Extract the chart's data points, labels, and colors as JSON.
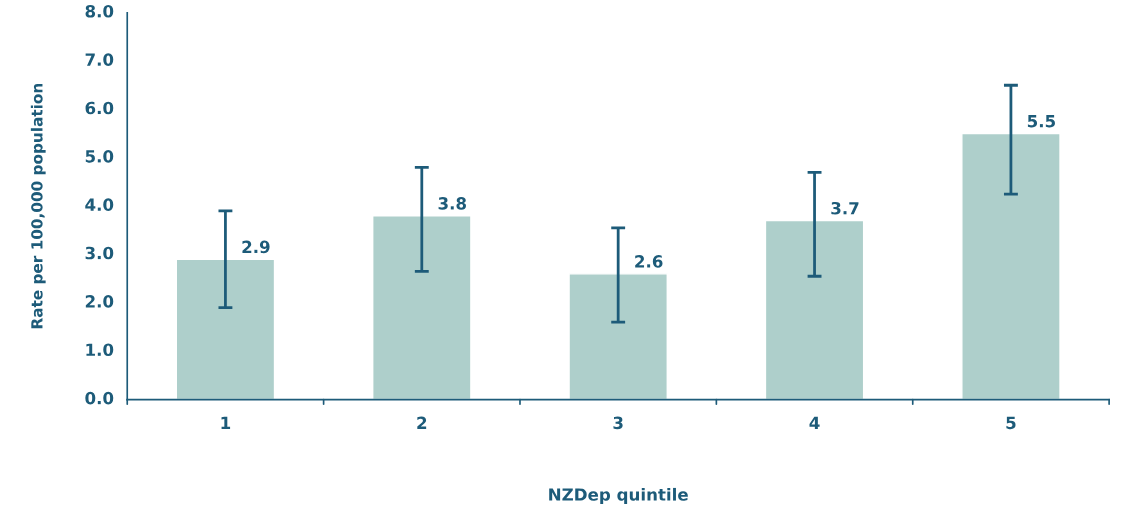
{
  "chart_data": {
    "type": "bar",
    "xlabel": "NZDep quintile",
    "ylabel": "Rate per 100,000 population",
    "categories": [
      "1",
      "2",
      "3",
      "4",
      "5"
    ],
    "values": [
      2.9,
      3.8,
      2.6,
      3.7,
      5.5
    ],
    "errors": [
      [
        1.9,
        3.9
      ],
      [
        2.65,
        4.8
      ],
      [
        1.6,
        3.55
      ],
      [
        2.55,
        4.7
      ],
      [
        4.25,
        6.5
      ]
    ],
    "color": "#aecfcb",
    "ylim": [
      0,
      8
    ],
    "yticks": [
      {
        "value": 0,
        "label": "0.0"
      },
      {
        "value": 1,
        "label": "1.0"
      },
      {
        "value": 2,
        "label": "2.0"
      },
      {
        "value": 3,
        "label": "3.0"
      },
      {
        "value": 4,
        "label": "4.0"
      },
      {
        "value": 5,
        "label": "5.0"
      },
      {
        "value": 6,
        "label": "6.0"
      },
      {
        "value": 7,
        "label": "7.0"
      },
      {
        "value": 8,
        "label": "8.0"
      }
    ],
    "data_labels": true,
    "grid": false
  }
}
